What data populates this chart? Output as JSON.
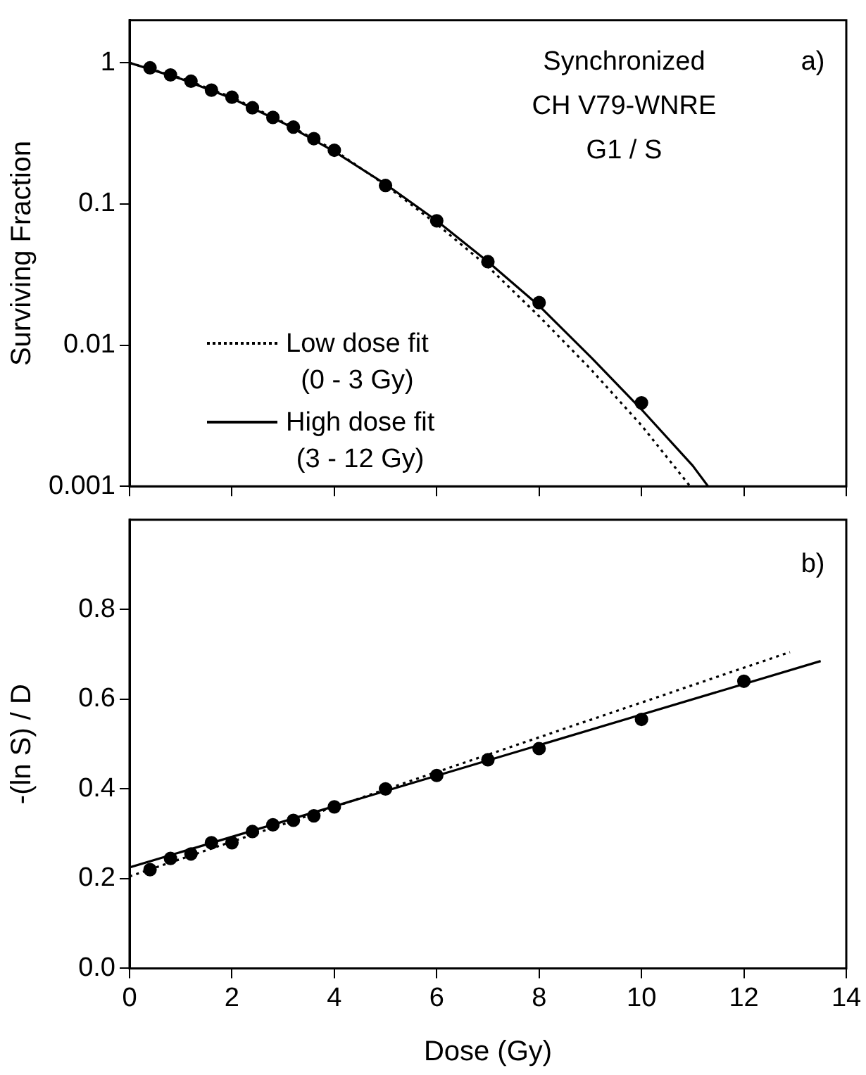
{
  "chart_data": [
    {
      "type": "scatter",
      "ylabel": "Surviving Fraction",
      "log": "y",
      "xlim": [
        0,
        14
      ],
      "xticks": [
        0,
        2,
        4,
        6,
        8,
        10,
        12,
        14
      ],
      "ylim": [
        0.001,
        2
      ],
      "yticks": [
        0.001,
        0.01,
        0.1,
        1
      ],
      "tick_labels": "y",
      "grid": false,
      "legend": "bottom left",
      "annotations": [
        "Synchronized",
        "CH V79-WNRE",
        "G1 / S",
        "a)"
      ],
      "x": [
        0.4,
        0.8,
        1.2,
        1.6,
        2.0,
        2.4,
        2.8,
        3.2,
        3.6,
        4,
        5,
        6,
        7,
        8,
        10
      ],
      "series": [
        {
          "color": "#000000",
          "marker": "circle",
          "values": [
            0.92,
            0.82,
            0.74,
            0.64,
            0.57,
            0.48,
            0.41,
            0.35,
            0.29,
            0.24,
            0.135,
            0.076,
            0.039,
            0.02,
            0.0039
          ]
        },
        {
          "type": "line",
          "name": "Low dose fit\n(0 - 3 Gy)",
          "color": "#000000",
          "marker": "none",
          "line_style": "dotted",
          "x": [
            0,
            1,
            2,
            3,
            4,
            5,
            6,
            7,
            8,
            9,
            10,
            10.95
          ],
          "values": [
            1,
            0.78,
            0.57,
            0.38,
            0.24,
            0.136,
            0.072,
            0.036,
            0.016,
            0.0068,
            0.0027,
            0.001
          ]
        },
        {
          "type": "line",
          "name": "High dose fit\n(3 - 12 Gy)",
          "color": "#000000",
          "marker": "none",
          "line_style": "solid",
          "x": [
            0,
            1,
            2,
            3,
            4,
            5,
            6,
            7,
            8,
            9,
            10,
            11,
            11.3
          ],
          "values": [
            1,
            0.77,
            0.56,
            0.375,
            0.235,
            0.138,
            0.076,
            0.039,
            0.019,
            0.0083,
            0.0035,
            0.0014,
            0.001
          ]
        }
      ]
    },
    {
      "type": "scatter",
      "xlabel": "Dose (Gy)",
      "ylabel": "-(ln S) / D",
      "xlim": [
        0,
        14
      ],
      "xticks": [
        0,
        2,
        4,
        6,
        8,
        10,
        12,
        14
      ],
      "ylim": [
        0,
        1
      ],
      "yticks": [
        {
          "value": 0,
          "label": "0.0"
        },
        0.2,
        0.4,
        0.6,
        0.8
      ],
      "grid": false,
      "annotations": [
        "b)"
      ],
      "x": [
        0.4,
        0.8,
        1.2,
        1.6,
        2.0,
        2.4,
        2.8,
        3.2,
        3.6,
        4,
        5,
        6,
        7,
        8,
        10,
        12
      ],
      "series": [
        {
          "color": "#000000",
          "marker": "circle",
          "values": [
            0.22,
            0.245,
            0.255,
            0.28,
            0.28,
            0.305,
            0.32,
            0.33,
            0.34,
            0.36,
            0.4,
            0.43,
            0.465,
            0.49,
            0.555,
            0.64
          ]
        },
        {
          "type": "line",
          "color": "#000000",
          "marker": "none",
          "line_style": "dotted",
          "x": [
            0,
            12.9
          ],
          "values": [
            0.205,
            0.705
          ]
        },
        {
          "type": "line",
          "color": "#000000",
          "marker": "none",
          "line_style": "solid",
          "x": [
            0,
            13.5
          ],
          "values": [
            0.225,
            0.685
          ]
        }
      ]
    }
  ]
}
